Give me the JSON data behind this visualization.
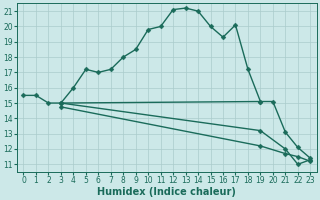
{
  "xlabel": "Humidex (Indice chaleur)",
  "background_color": "#cce8e8",
  "grid_color": "#aacccc",
  "line_color": "#1a6b5a",
  "xlim": [
    -0.5,
    23.5
  ],
  "ylim": [
    10.5,
    21.5
  ],
  "xticks": [
    0,
    1,
    2,
    3,
    4,
    5,
    6,
    7,
    8,
    9,
    10,
    11,
    12,
    13,
    14,
    15,
    16,
    17,
    18,
    19,
    20,
    21,
    22,
    23
  ],
  "yticks": [
    11,
    12,
    13,
    14,
    15,
    16,
    17,
    18,
    19,
    20,
    21
  ],
  "curve1_x": [
    0,
    1,
    2,
    3,
    4,
    5,
    6,
    7,
    8,
    9,
    10,
    11,
    12,
    13,
    14,
    15,
    16,
    17,
    18,
    19,
    20,
    21,
    22,
    23
  ],
  "curve1_y": [
    15.5,
    15.5,
    15.0,
    15.0,
    16.0,
    17.2,
    17.0,
    17.2,
    18.0,
    18.5,
    19.8,
    20.0,
    21.1,
    21.2,
    21.0,
    20.0,
    19.3,
    20.1,
    17.2,
    15.1,
    15.1,
    13.1,
    12.1,
    11.4
  ],
  "curve2_x": [
    3,
    19
  ],
  "curve2_y": [
    15.0,
    15.1
  ],
  "curve3_x": [
    3,
    19,
    21,
    22,
    23
  ],
  "curve3_y": [
    15.0,
    13.2,
    12.0,
    11.0,
    11.3
  ],
  "curve4_x": [
    3,
    19,
    21,
    22,
    23
  ],
  "curve4_y": [
    14.75,
    12.2,
    11.7,
    11.5,
    11.2
  ],
  "markersize": 2.5,
  "linewidth": 1.0,
  "xlabel_fontsize": 7,
  "tick_fontsize": 5.5
}
